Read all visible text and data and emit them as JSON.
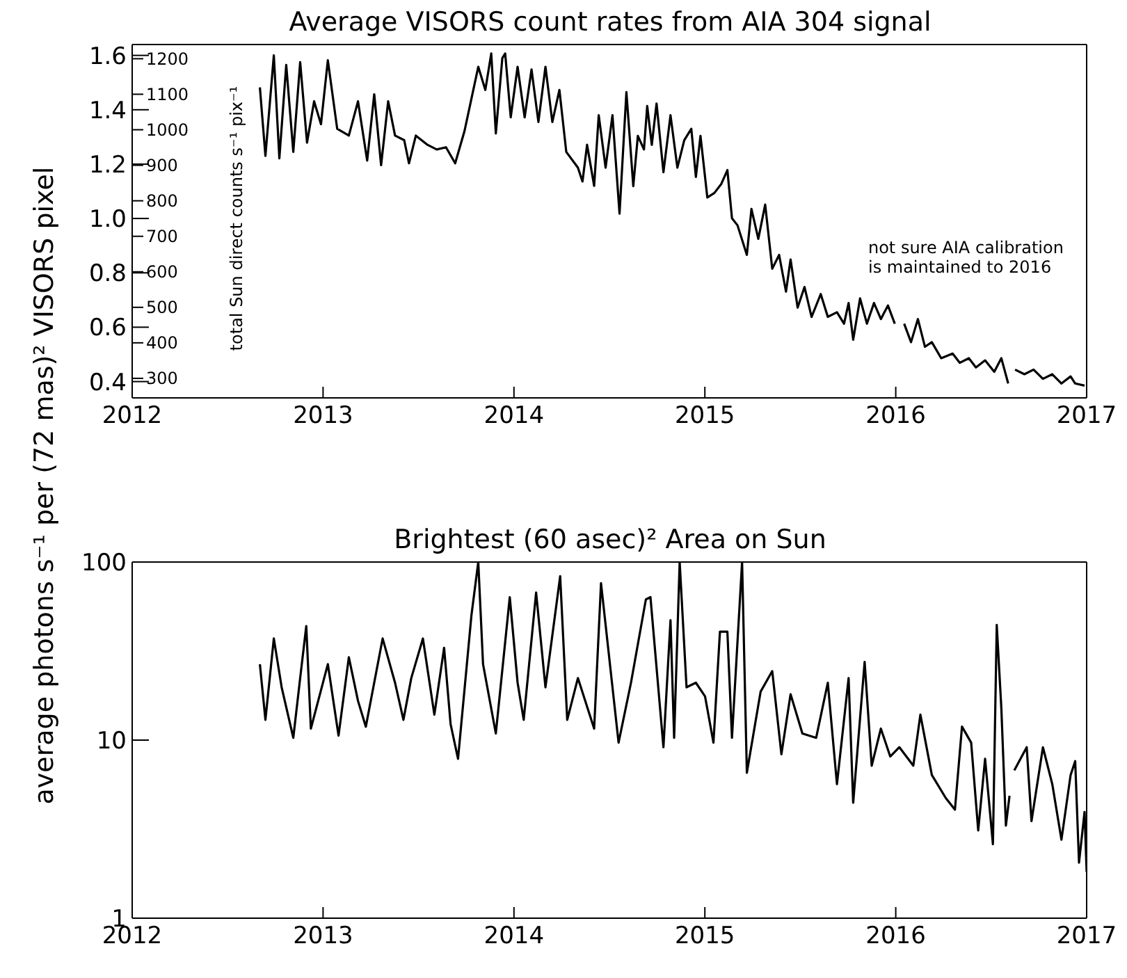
{
  "chart_data": [
    {
      "type": "line",
      "title": "Average VISORS count rates from AIA 304 signal",
      "ylabel": "average photons s⁻¹ per (72 mas)² VISORS pixel",
      "y2label": "total Sun direct counts s⁻¹ pix⁻¹",
      "xlim": [
        2012,
        2017
      ],
      "xticks": [
        2012,
        2013,
        2014,
        2015,
        2016,
        2017
      ],
      "ylim": [
        0.34,
        1.64
      ],
      "yticks": [
        0.4,
        0.6,
        0.8,
        {
          "value": 1.0,
          "label": "1.0"
        },
        1.2,
        1.4,
        1.6
      ],
      "y2lim": [
        245,
        1240
      ],
      "y2ticks": [
        300,
        400,
        500,
        600,
        700,
        800,
        900,
        1000,
        1100,
        1200
      ],
      "annotations": [
        "not sure AIA calibration\nis maintained to 2016"
      ],
      "grid": false,
      "legend": false,
      "marker": "none",
      "line_style": "solid",
      "series": [
        {
          "color": "#000000",
          "x": [
            2012.669,
            2012.698,
            2012.742,
            2012.771,
            2012.807,
            2012.844,
            2012.88,
            2012.916,
            2012.953,
            2012.989,
            2013.025,
            2013.074,
            2013.135,
            2013.183,
            2013.231,
            2013.268,
            2013.304,
            2013.341,
            2013.377,
            2013.425,
            2013.45,
            2013.486,
            2013.547,
            2013.595,
            2013.644,
            2013.692,
            2013.741,
            2013.777,
            2013.813,
            2013.85,
            2013.881,
            2013.905,
            2013.939,
            2013.954,
            2013.983,
            2014.019,
            2014.056,
            2014.092,
            2014.128,
            2014.165,
            2014.201,
            2014.238,
            2014.274,
            2014.335,
            2014.359,
            2014.383,
            2014.42,
            2014.444,
            2014.48,
            2014.516,
            2014.553,
            2014.589,
            2014.625,
            2014.649,
            2014.681,
            2014.698,
            2014.722,
            2014.747,
            2014.783,
            2014.82,
            2014.856,
            2014.892,
            2014.929,
            2014.953,
            2014.977,
            2015.013,
            2015.05,
            2015.086,
            2015.118,
            2015.142,
            2015.171,
            2015.22,
            2015.244,
            2015.28,
            2015.316,
            2015.353,
            2015.389,
            2015.425,
            2015.449,
            2015.486,
            2015.522,
            2015.559,
            2015.607,
            2015.644,
            2015.692,
            2015.729,
            2015.753,
            2015.777,
            2015.813,
            2015.849,
            2015.886,
            2015.922,
            2015.959,
            2015.995,
            2016.02,
            2016.044,
            2016.08,
            2016.116,
            2016.153,
            2016.189,
            2016.238,
            2016.298,
            2016.335,
            2016.383,
            2016.42,
            2016.468,
            2016.516,
            2016.553,
            2016.589,
            2016.607,
            2016.625,
            2016.674,
            2016.722,
            2016.771,
            2016.82,
            2016.868,
            2016.916,
            2016.94,
            2016.989
          ],
          "values": [
            1.482,
            1.23,
            1.6,
            1.221,
            1.565,
            1.245,
            1.575,
            1.279,
            1.431,
            1.347,
            1.582,
            1.33,
            1.305,
            1.431,
            1.213,
            1.457,
            1.196,
            1.431,
            1.305,
            1.288,
            1.203,
            1.305,
            1.271,
            1.254,
            1.262,
            1.203,
            1.322,
            1.44,
            1.558,
            1.473,
            1.607,
            1.313,
            1.59,
            1.607,
            1.372,
            1.558,
            1.372,
            1.548,
            1.355,
            1.558,
            1.355,
            1.473,
            1.245,
            1.187,
            1.136,
            1.271,
            1.12,
            1.38,
            1.187,
            1.38,
            1.018,
            1.465,
            1.119,
            1.304,
            1.254,
            1.414,
            1.271,
            1.423,
            1.17,
            1.38,
            1.187,
            1.288,
            1.33,
            1.153,
            1.304,
            1.077,
            1.094,
            1.127,
            1.178,
            1.001,
            0.975,
            0.866,
            1.035,
            0.925,
            1.051,
            0.815,
            0.866,
            0.731,
            0.849,
            0.672,
            0.748,
            0.638,
            0.722,
            0.638,
            0.655,
            0.613,
            0.689,
            0.554,
            0.706,
            0.613,
            0.689,
            0.63,
            0.68,
            0.613,
            null,
            0.613,
            0.545,
            0.63,
            0.528,
            0.545,
            0.486,
            0.503,
            0.469,
            0.486,
            0.452,
            0.478,
            0.436,
            0.486,
            0.393,
            null,
            0.444,
            0.427,
            0.444,
            0.41,
            0.427,
            0.393,
            0.419,
            0.393,
            0.385
          ]
        }
      ]
    },
    {
      "type": "line",
      "title": "Brightest (60 asec)² Area on Sun",
      "log": "y",
      "xlim": [
        2012,
        2017
      ],
      "xticks": [
        2012,
        2013,
        2014,
        2015,
        2016,
        2017
      ],
      "ylim": [
        1,
        100
      ],
      "yticks": [
        1,
        10,
        100
      ],
      "grid": false,
      "legend": false,
      "marker": "none",
      "line_style": "solid",
      "series": [
        {
          "color": "#000000",
          "x": [
            2012.669,
            2012.698,
            2012.742,
            2012.783,
            2012.844,
            2012.88,
            2012.912,
            2012.936,
            2013.025,
            2013.081,
            2013.135,
            2013.183,
            2013.224,
            2013.312,
            2013.377,
            2013.421,
            2013.462,
            2013.523,
            2013.583,
            2013.634,
            2013.668,
            2013.707,
            2013.777,
            2013.813,
            2013.838,
            2013.905,
            2013.978,
            2014.019,
            2014.051,
            2014.116,
            2014.165,
            2014.242,
            2014.279,
            2014.335,
            2014.42,
            2014.456,
            2014.548,
            2014.613,
            2014.691,
            2014.715,
            2014.783,
            2014.82,
            2014.839,
            2014.868,
            2014.904,
            2014.953,
            2015.001,
            2015.045,
            2015.079,
            2015.118,
            2015.142,
            2015.195,
            2015.22,
            2015.292,
            2015.353,
            2015.401,
            2015.449,
            2015.511,
            2015.583,
            2015.644,
            2015.692,
            2015.753,
            2015.777,
            2015.837,
            2015.874,
            2015.922,
            2015.971,
            2016.019,
            2016.092,
            2016.129,
            2016.189,
            2016.262,
            2016.31,
            2016.347,
            2016.395,
            2016.432,
            2016.468,
            2016.509,
            2016.529,
            2016.553,
            2016.577,
            2016.596,
            2016.608,
            2016.621,
            2016.686,
            2016.711,
            2016.771,
            2016.82,
            2016.868,
            2016.916,
            2016.94,
            2016.96,
            2016.989,
            2017.0
          ],
          "values": [
            26.7,
            13.0,
            37.2,
            19.8,
            10.3,
            22.3,
            43.7,
            11.6,
            26.7,
            10.6,
            29.2,
            16.6,
            11.9,
            37.2,
            21.0,
            13.0,
            22.3,
            37.2,
            13.9,
            33.0,
            12.3,
            7.85,
            50,
            100,
            26.7,
            10.9,
            63.5,
            21.0,
            13.0,
            67.4,
            19.8,
            83.2,
            13.0,
            22.3,
            11.6,
            76.1,
            9.68,
            21.0,
            61.7,
            63.5,
            9.12,
            47.1,
            10.3,
            100,
            19.8,
            21.0,
            17.6,
            9.68,
            40.6,
            40.6,
            10.3,
            100,
            6.56,
            18.7,
            24.4,
            8.33,
            18.1,
            10.9,
            10.3,
            21.0,
            5.66,
            22.3,
            4.45,
            27.5,
            7.18,
            11.6,
            8.09,
            9.12,
            7.18,
            13.9,
            6.37,
            4.73,
            4.07,
            11.9,
            9.68,
            3.11,
            7.85,
            2.6,
            44.4,
            15.2,
            3.31,
            4.87,
            null,
            6.76,
            9.12,
            3.51,
            9.12,
            5.66,
            2.76,
            6.37,
            7.62,
            2.05,
            3.95,
            1.82
          ]
        }
      ]
    }
  ]
}
